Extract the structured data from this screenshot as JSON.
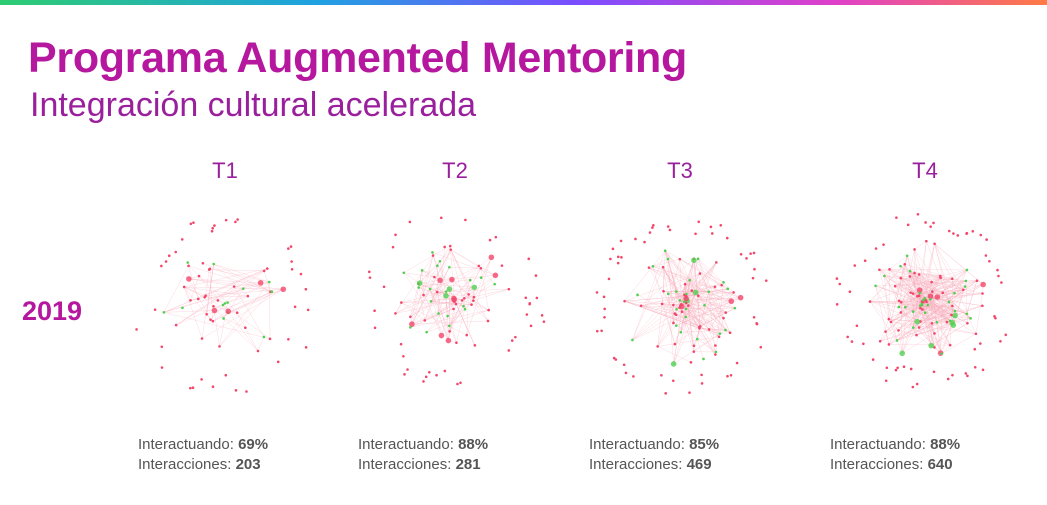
{
  "header": {
    "title": "Programa Augmented Mentoring",
    "subtitle": "Integración cultural acelerada"
  },
  "year": "2019",
  "panels": [
    {
      "label": "T1",
      "stats": [
        {
          "label": "Interactuando:",
          "value": "69%"
        },
        {
          "label": "Interacciones:",
          "value": "203"
        }
      ]
    },
    {
      "label": "T2",
      "stats": [
        {
          "label": "Interactuando:",
          "value": "88%"
        },
        {
          "label": "Interacciones:",
          "value": "281"
        }
      ]
    },
    {
      "label": "T3",
      "stats": [
        {
          "label": "Interactuando:",
          "value": "85%"
        },
        {
          "label": "Interacciones:",
          "value": "469"
        }
      ]
    },
    {
      "label": "T4",
      "stats": [
        {
          "label": "Interactuando:",
          "value": "88%"
        },
        {
          "label": "Interacciones:",
          "value": "640"
        }
      ]
    }
  ]
}
